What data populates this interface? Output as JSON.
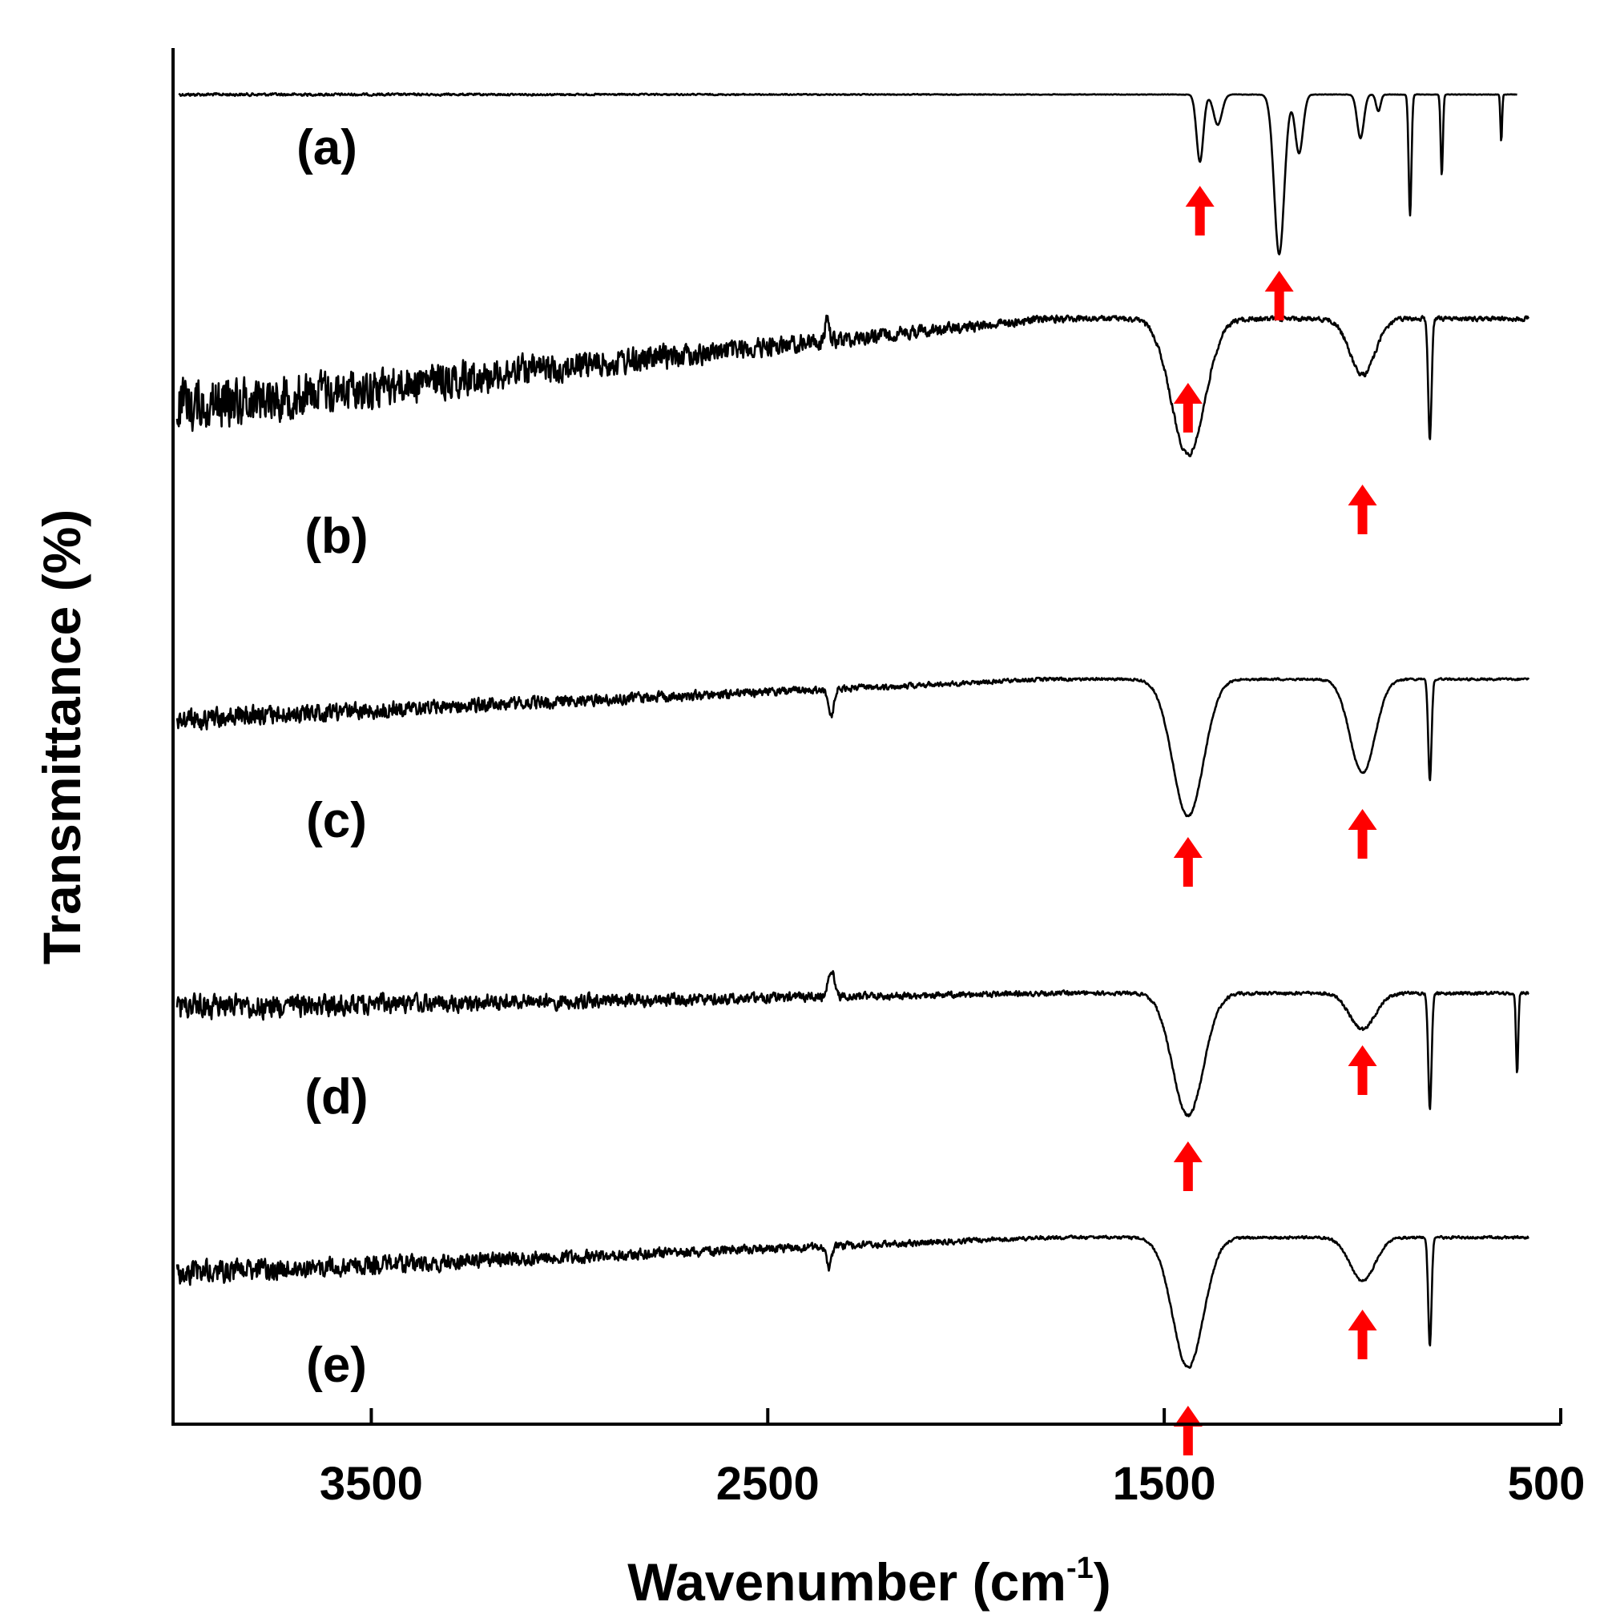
{
  "chart_data": {
    "type": "line",
    "title": "",
    "xlabel": "Wavenumber (cm",
    "xlabel_sup": "-1",
    "xlabel_end": ")",
    "ylabel": "Transmittance (%)",
    "xlim": [
      4000,
      500
    ],
    "x_ticks": [
      3500,
      2500,
      1500,
      500
    ],
    "x_tick_labels": [
      "3500",
      "2500",
      "1500",
      "500"
    ],
    "grid": false,
    "series": [
      {
        "name": "(a)",
        "label": "(a)",
        "noise_high": 0.012,
        "noise_low": 0.002,
        "baseline_tilt": 0.0,
        "peaks": [
          {
            "x": 1410,
            "depth": 0.4,
            "width": 12
          },
          {
            "x": 1365,
            "depth": 0.18,
            "width": 15
          },
          {
            "x": 1210,
            "depth": 0.95,
            "width": 18
          },
          {
            "x": 1160,
            "depth": 0.35,
            "width": 14
          },
          {
            "x": 1005,
            "depth": 0.26,
            "width": 12
          },
          {
            "x": 960,
            "depth": 0.1,
            "width": 8
          },
          {
            "x": 880,
            "depth": 0.72,
            "width": 5
          },
          {
            "x": 800,
            "depth": 0.48,
            "width": 4
          },
          {
            "x": 650,
            "depth": 0.28,
            "width": 3
          }
        ],
        "arrows_x": [
          1410,
          1210
        ]
      },
      {
        "name": "(b)",
        "label": "(b)",
        "noise_high": 0.22,
        "noise_low": 0.02,
        "baseline_tilt": 0.55,
        "peaks": [
          {
            "x": 1440,
            "depth": 0.85,
            "width": 60
          },
          {
            "x": 1000,
            "depth": 0.35,
            "width": 45
          },
          {
            "x": 830,
            "depth": 0.75,
            "width": 6
          },
          {
            "x": 2350,
            "depth": -0.15,
            "width": 6
          }
        ],
        "arrows_x": [
          1440,
          1000
        ]
      },
      {
        "name": "(c)",
        "label": "(c)",
        "noise_high": 0.1,
        "noise_low": 0.01,
        "baseline_tilt": 0.28,
        "peaks": [
          {
            "x": 1440,
            "depth": 0.95,
            "width": 55
          },
          {
            "x": 1000,
            "depth": 0.65,
            "width": 45
          },
          {
            "x": 830,
            "depth": 0.7,
            "width": 6
          },
          {
            "x": 2340,
            "depth": 0.18,
            "width": 10
          }
        ],
        "arrows_x": [
          1440,
          1000
        ]
      },
      {
        "name": "(d)",
        "label": "(d)",
        "noise_high": 0.12,
        "noise_low": 0.015,
        "baseline_tilt": 0.1,
        "peaks": [
          {
            "x": 1440,
            "depth": 0.85,
            "width": 55
          },
          {
            "x": 1000,
            "depth": 0.25,
            "width": 45
          },
          {
            "x": 830,
            "depth": 0.8,
            "width": 6
          },
          {
            "x": 2340,
            "depth": -0.2,
            "width": 10
          },
          {
            "x": 610,
            "depth": 0.55,
            "width": 4
          }
        ],
        "arrows_x": [
          1440,
          1000
        ]
      },
      {
        "name": "(e)",
        "label": "(e)",
        "noise_high": 0.11,
        "noise_low": 0.012,
        "baseline_tilt": 0.25,
        "peaks": [
          {
            "x": 1440,
            "depth": 0.9,
            "width": 55
          },
          {
            "x": 1000,
            "depth": 0.3,
            "width": 45
          },
          {
            "x": 830,
            "depth": 0.75,
            "width": 6
          },
          {
            "x": 2345,
            "depth": 0.15,
            "width": 8
          }
        ],
        "arrows_x": [
          1440,
          1000
        ]
      }
    ]
  },
  "colors": {
    "line": "#000000",
    "arrow": "#ff0000",
    "background": "#ffffff"
  }
}
